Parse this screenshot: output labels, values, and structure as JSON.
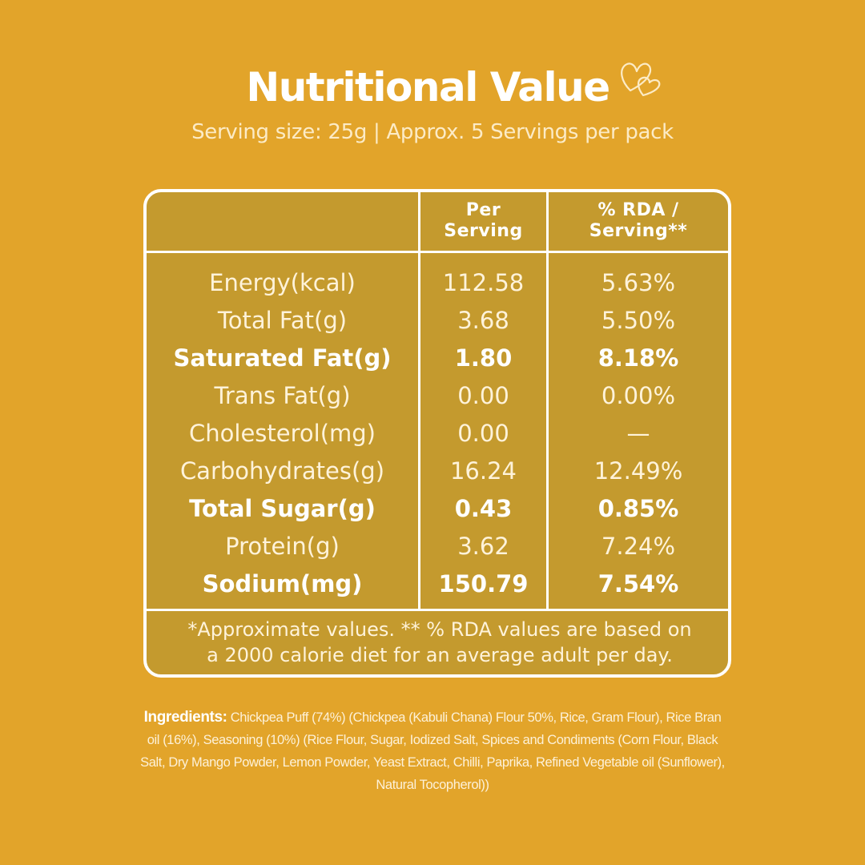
{
  "title": "Nutritional Value",
  "subtitle": "Serving size: 25g | Approx. 5 Servings per pack",
  "table": {
    "header_per_serving": [
      "Per",
      "Serving"
    ],
    "header_rda": [
      "% RDA /",
      "Serving**"
    ],
    "rows": [
      {
        "nutrient": "Energy(kcal)",
        "per_serving": "112.58",
        "rda": "5.63%",
        "bold": false
      },
      {
        "nutrient": "Total Fat(g)",
        "per_serving": "3.68",
        "rda": "5.50%",
        "bold": false
      },
      {
        "nutrient": "Saturated Fat(g)",
        "per_serving": "1.80",
        "rda": "8.18%",
        "bold": true
      },
      {
        "nutrient": "Trans Fat(g)",
        "per_serving": "0.00",
        "rda": "0.00%",
        "bold": false
      },
      {
        "nutrient": "Cholesterol(mg)",
        "per_serving": "0.00",
        "rda": "—",
        "bold": false
      },
      {
        "nutrient": "Carbohydrates(g)",
        "per_serving": "16.24",
        "rda": "12.49%",
        "bold": false
      },
      {
        "nutrient": "Total Sugar(g)",
        "per_serving": "0.43",
        "rda": "0.85%",
        "bold": true
      },
      {
        "nutrient": "Protein(g)",
        "per_serving": "3.62",
        "rda": "7.24%",
        "bold": false
      },
      {
        "nutrient": "Sodium(mg)",
        "per_serving": "150.79",
        "rda": "7.54%",
        "bold": true
      }
    ],
    "footnote": [
      "*Approximate values. ** % RDA values are based on",
      "a 2000 calorie diet for an average adult per day."
    ]
  },
  "ingredients": {
    "label": "Ingredients:",
    "text": "Chickpea Puff (74%)  (Chickpea (Kabuli Chana) Flour 50%, Rice, Gram Flour), Rice Bran oil (16%), Seasoning (10%) (Rice Flour, Sugar, Iodized Salt, Spices and Condiments (Corn Flour, Black Salt, Dry Mango Powder, Lemon Powder, Yeast Extract, Chilli, Paprika, Refined Vegetable oil (Sunflower), Natural Tocopherol))"
  },
  "colors": {
    "background": "#E2A42A",
    "table_fill": "#C49A2E",
    "text": "#FFFFFF"
  },
  "icons": [
    "hearts-icon"
  ]
}
